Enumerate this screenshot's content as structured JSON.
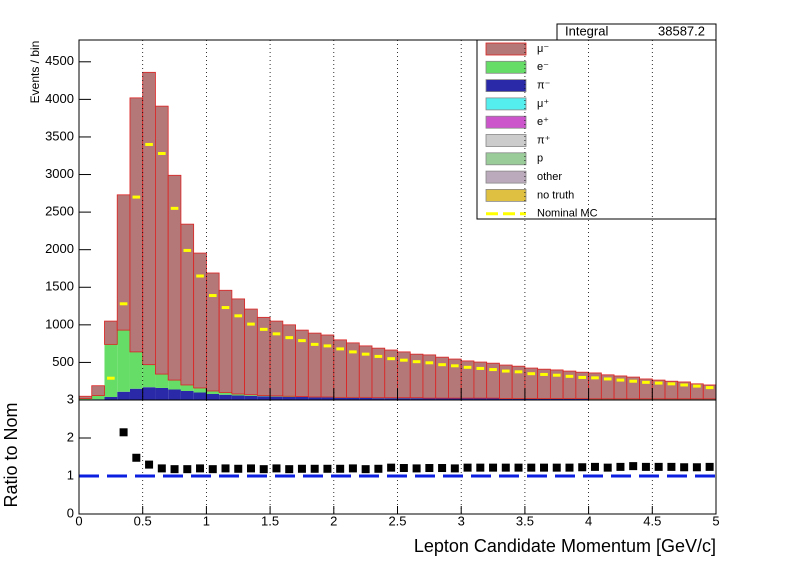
{
  "chart_data": [
    {
      "type": "stacked_histogram",
      "y_label": "Events / bin",
      "integral_label": "Integral",
      "integral_value": "38587.2",
      "bins": [
        0,
        0.1,
        0.2,
        0.3,
        0.4,
        0.5,
        0.6,
        0.7,
        0.8,
        0.9,
        1,
        1.1,
        1.2,
        1.3,
        1.4,
        1.5,
        1.6,
        1.7,
        1.8,
        1.9,
        2,
        2.1,
        2.2,
        2.3,
        2.4,
        2.5,
        2.6,
        2.7,
        2.8,
        2.9,
        3,
        3.1,
        3.2,
        3.3,
        3.4,
        3.5,
        3.6,
        3.7,
        3.8,
        3.9,
        4,
        4.1,
        4.2,
        4.3,
        4.4,
        4.5,
        4.6,
        4.7,
        4.8,
        4.9,
        5
      ],
      "xlim": [
        0,
        5
      ],
      "ylim": [
        0,
        4790
      ],
      "yticks": [
        500,
        1000,
        1500,
        2000,
        2500,
        3000,
        3500,
        4000,
        4500
      ],
      "series": [
        {
          "name": "μ⁻",
          "color": "#b57878",
          "values": [
            30,
            130,
            310,
            1800,
            3380,
            3890,
            3565,
            2725,
            2140,
            1795,
            1570,
            1360,
            1265,
            1140,
            1040,
            995,
            950,
            885,
            850,
            825,
            765,
            725,
            685,
            660,
            635,
            610,
            580,
            575,
            545,
            520,
            495,
            480,
            465,
            445,
            430,
            405,
            390,
            380,
            365,
            350,
            345,
            320,
            305,
            290,
            265,
            250,
            235,
            225,
            200,
            185
          ]
        },
        {
          "name": "e⁻",
          "color": "#66dd66",
          "values": [
            15,
            50,
            700,
            820,
            490,
            300,
            185,
            125,
            80,
            60,
            40,
            30,
            20,
            15,
            10,
            10,
            10,
            5,
            5,
            5,
            5,
            5,
            5,
            5,
            5,
            5,
            5,
            5,
            5,
            5,
            5,
            5,
            5,
            5,
            5,
            5,
            5,
            5,
            5,
            5,
            5,
            5,
            5,
            5,
            5,
            5,
            5,
            5,
            5,
            5
          ]
        },
        {
          "name": "π⁻",
          "color": "#2a2aa8",
          "values": [
            5,
            10,
            40,
            110,
            150,
            170,
            160,
            140,
            120,
            100,
            80,
            70,
            60,
            55,
            50,
            45,
            40,
            40,
            35,
            35,
            30,
            30,
            30,
            25,
            25,
            25,
            25,
            20,
            20,
            20,
            20,
            20,
            20,
            15,
            15,
            15,
            15,
            15,
            15,
            15,
            10,
            10,
            10,
            10,
            10,
            10,
            10,
            10,
            10,
            10
          ]
        },
        {
          "name": "μ⁺",
          "color": "#55eeee",
          "values": [
            0,
            0,
            0,
            0,
            0,
            0,
            0,
            0,
            0,
            0,
            0,
            0,
            0,
            0,
            0,
            0,
            0,
            0,
            0,
            0,
            0,
            0,
            0,
            0,
            0,
            0,
            0,
            0,
            0,
            0,
            0,
            0,
            0,
            0,
            0,
            0,
            0,
            0,
            0,
            0,
            0,
            0,
            0,
            0,
            0,
            0,
            0,
            0,
            0,
            0
          ]
        },
        {
          "name": "e⁺",
          "color": "#cc55cc",
          "values": [
            0,
            0,
            0,
            0,
            0,
            0,
            0,
            0,
            0,
            0,
            0,
            0,
            0,
            0,
            0,
            0,
            0,
            0,
            0,
            0,
            0,
            0,
            0,
            0,
            0,
            0,
            0,
            0,
            0,
            0,
            0,
            0,
            0,
            0,
            0,
            0,
            0,
            0,
            0,
            0,
            0,
            0,
            0,
            0,
            0,
            0,
            0,
            0,
            0,
            0
          ]
        },
        {
          "name": "π⁺",
          "color": "#cccccc",
          "values": [
            0,
            0,
            0,
            0,
            0,
            0,
            0,
            0,
            0,
            0,
            0,
            0,
            0,
            0,
            0,
            0,
            0,
            0,
            0,
            0,
            0,
            0,
            0,
            0,
            0,
            0,
            0,
            0,
            0,
            0,
            0,
            0,
            0,
            0,
            0,
            0,
            0,
            0,
            0,
            0,
            0,
            0,
            0,
            0,
            0,
            0,
            0,
            0,
            0,
            0
          ]
        },
        {
          "name": "p",
          "color": "#99cc99",
          "values": [
            0,
            0,
            0,
            0,
            0,
            0,
            0,
            0,
            0,
            0,
            0,
            0,
            0,
            0,
            0,
            0,
            0,
            0,
            0,
            0,
            0,
            0,
            0,
            0,
            0,
            0,
            0,
            0,
            0,
            0,
            0,
            0,
            0,
            0,
            0,
            0,
            0,
            0,
            0,
            0,
            0,
            0,
            0,
            0,
            0,
            0,
            0,
            0,
            0,
            0
          ]
        },
        {
          "name": "other",
          "color": "#bbaabb",
          "values": [
            0,
            0,
            0,
            0,
            0,
            0,
            0,
            0,
            0,
            0,
            0,
            0,
            0,
            0,
            0,
            0,
            0,
            0,
            0,
            0,
            0,
            0,
            0,
            0,
            0,
            0,
            0,
            0,
            0,
            0,
            0,
            0,
            0,
            0,
            0,
            0,
            0,
            0,
            0,
            0,
            0,
            0,
            0,
            0,
            0,
            0,
            0,
            0,
            0,
            0
          ]
        },
        {
          "name": "no truth",
          "color": "#e0c040",
          "values": [
            0,
            0,
            0,
            0,
            0,
            0,
            0,
            0,
            0,
            0,
            0,
            0,
            0,
            0,
            0,
            0,
            0,
            0,
            0,
            0,
            0,
            0,
            0,
            0,
            0,
            0,
            0,
            0,
            0,
            0,
            0,
            0,
            0,
            0,
            0,
            0,
            0,
            0,
            0,
            0,
            0,
            0,
            0,
            0,
            0,
            0,
            0,
            0,
            0,
            0
          ]
        }
      ],
      "nominal": {
        "name": "Nominal MC",
        "color": "#ffff00",
        "values": [
          null,
          null,
          290,
          1280,
          2700,
          3400,
          3280,
          2550,
          1990,
          1650,
          1390,
          1230,
          1120,
          1010,
          940,
          880,
          830,
          790,
          740,
          720,
          680,
          640,
          610,
          580,
          550,
          530,
          510,
          495,
          470,
          455,
          435,
          420,
          405,
          385,
          375,
          350,
          340,
          330,
          315,
          300,
          295,
          280,
          265,
          250,
          235,
          225,
          215,
          200,
          185,
          165
        ]
      }
    },
    {
      "type": "scatter",
      "y_label": "Ratio to Nom",
      "x_label": "Lepton Candidate Momentum [GeV/c]",
      "x": [
        0.05,
        0.15,
        0.25,
        0.35,
        0.45,
        0.55,
        0.65,
        0.75,
        0.85,
        0.95,
        1.05,
        1.15,
        1.25,
        1.35,
        1.45,
        1.55,
        1.65,
        1.75,
        1.85,
        1.95,
        2.05,
        2.15,
        2.25,
        2.35,
        2.45,
        2.55,
        2.65,
        2.75,
        2.85,
        2.95,
        3.05,
        3.15,
        3.25,
        3.35,
        3.45,
        3.55,
        3.65,
        3.75,
        3.85,
        3.95,
        4.05,
        4.15,
        4.25,
        4.35,
        4.45,
        4.55,
        4.65,
        4.75,
        4.85,
        4.95
      ],
      "values": [
        null,
        null,
        null,
        2.15,
        1.48,
        1.3,
        1.2,
        1.18,
        1.18,
        1.2,
        1.18,
        1.2,
        1.19,
        1.2,
        1.18,
        1.2,
        1.18,
        1.19,
        1.19,
        1.19,
        1.19,
        1.2,
        1.18,
        1.19,
        1.22,
        1.21,
        1.2,
        1.21,
        1.21,
        1.2,
        1.22,
        1.22,
        1.22,
        1.22,
        1.22,
        1.22,
        1.22,
        1.22,
        1.22,
        1.23,
        1.24,
        1.22,
        1.24,
        1.26,
        1.24,
        1.24,
        1.24,
        1.23,
        1.23,
        1.24
      ],
      "color": "#000000",
      "reference_line": 1,
      "reference_color": "#0a1fe0",
      "xlim": [
        0,
        5
      ],
      "xticks": [
        0,
        0.5,
        1,
        1.5,
        2,
        2.5,
        3,
        3.5,
        4,
        4.5,
        5
      ],
      "ylim": [
        0,
        3
      ],
      "yticks": [
        0,
        1,
        2,
        3
      ],
      "grid": true
    }
  ]
}
